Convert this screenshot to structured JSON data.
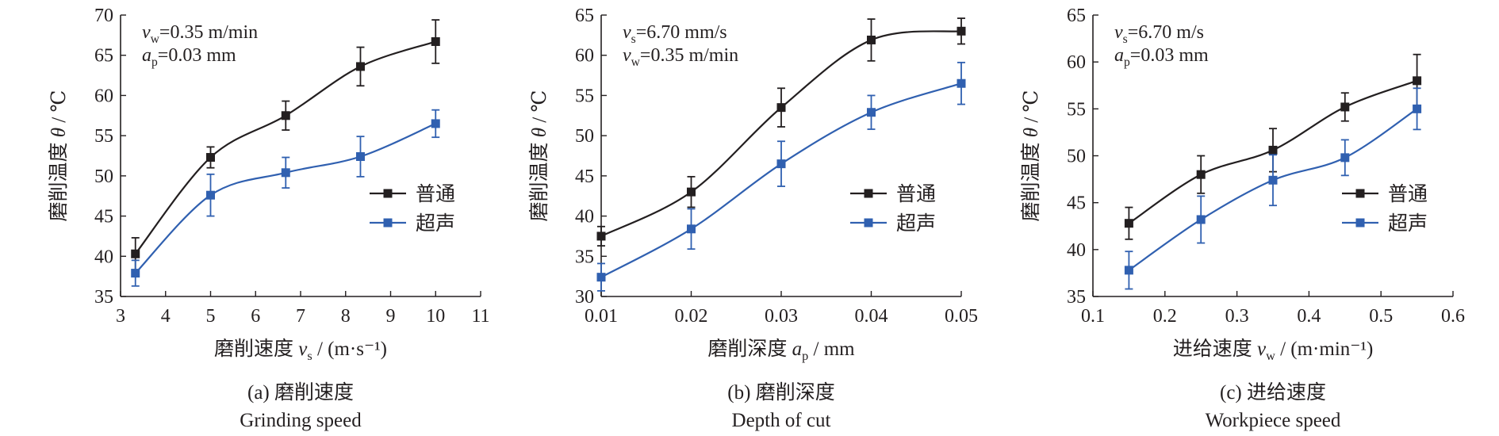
{
  "colors": {
    "normal": "#231f20",
    "ultrasonic": "#3060b0"
  },
  "legend": {
    "normal": "普通",
    "ultrasonic": "超声"
  },
  "chart_data": [
    {
      "type": "line",
      "caption": "(a) 磨削速度",
      "caption_en": "Grinding speed",
      "xlabel": "磨削速度 v_s / (m·s⁻¹)",
      "ylabel": "磨削温度 θ / ℃",
      "xlim": [
        3,
        11
      ],
      "ylim": [
        35,
        70
      ],
      "xticks": [
        3,
        4,
        5,
        6,
        7,
        8,
        9,
        10,
        11
      ],
      "yticks": [
        35,
        40,
        45,
        50,
        55,
        60,
        65,
        70
      ],
      "xtick_labels": [
        "3",
        "4",
        "5",
        "6",
        "7",
        "8",
        "9",
        "10",
        "11"
      ],
      "ytick_labels": [
        "35",
        "40",
        "45",
        "50",
        "55",
        "60",
        "65",
        "70"
      ],
      "conditions": [
        "v_w=0.35 m/min",
        "a_p=0.03 mm"
      ],
      "legend_position": "lower-right",
      "series": [
        {
          "name": "普通",
          "x": [
            3.33,
            5.0,
            6.67,
            8.33,
            10.0
          ],
          "y": [
            40.3,
            52.3,
            57.5,
            63.6,
            66.7
          ],
          "err": [
            2.0,
            1.3,
            1.8,
            2.4,
            2.7
          ]
        },
        {
          "name": "超声",
          "x": [
            3.33,
            5.0,
            6.67,
            8.33,
            10.0
          ],
          "y": [
            37.9,
            47.6,
            50.4,
            52.4,
            56.5
          ],
          "err": [
            1.6,
            2.6,
            1.9,
            2.5,
            1.7
          ]
        }
      ]
    },
    {
      "type": "line",
      "caption": "(b) 磨削深度",
      "caption_en": "Depth of cut",
      "xlabel": "磨削深度 a_p / mm",
      "ylabel": "磨削温度 θ / ℃",
      "xlim": [
        0.01,
        0.05
      ],
      "ylim": [
        30,
        65
      ],
      "xticks": [
        0.01,
        0.02,
        0.03,
        0.04,
        0.05
      ],
      "yticks": [
        30,
        35,
        40,
        45,
        50,
        55,
        60,
        65
      ],
      "xtick_labels": [
        "0.01",
        "0.02",
        "0.03",
        "0.04",
        "0.05"
      ],
      "ytick_labels": [
        "30",
        "35",
        "40",
        "45",
        "50",
        "55",
        "60",
        "65"
      ],
      "conditions": [
        "v_s=6.70 mm/s",
        "v_w=0.35 m/min"
      ],
      "legend_position": "lower-right",
      "series": [
        {
          "name": "普通",
          "x": [
            0.01,
            0.02,
            0.03,
            0.04,
            0.05
          ],
          "y": [
            37.5,
            43.0,
            53.5,
            61.9,
            63.0
          ],
          "err": [
            1.2,
            1.9,
            2.4,
            2.6,
            1.6
          ]
        },
        {
          "name": "超声",
          "x": [
            0.01,
            0.02,
            0.03,
            0.04,
            0.05
          ],
          "y": [
            32.4,
            38.4,
            46.5,
            52.9,
            56.5
          ],
          "err": [
            1.7,
            2.5,
            2.8,
            2.1,
            2.6
          ]
        }
      ]
    },
    {
      "type": "line",
      "caption": "(c) 进给速度",
      "caption_en": "Workpiece speed",
      "xlabel": "进给速度 v_w / (m·min⁻¹)",
      "ylabel": "磨削温度 θ / ℃",
      "xlim": [
        0.1,
        0.6
      ],
      "ylim": [
        35,
        65
      ],
      "xticks": [
        0.1,
        0.2,
        0.3,
        0.4,
        0.5,
        0.6
      ],
      "yticks": [
        35,
        40,
        45,
        50,
        55,
        60,
        65
      ],
      "xtick_labels": [
        "0.1",
        "0.2",
        "0.3",
        "0.4",
        "0.5",
        "0.6"
      ],
      "ytick_labels": [
        "35",
        "40",
        "45",
        "50",
        "55",
        "60",
        "65"
      ],
      "conditions": [
        "v_s=6.70 m/s",
        "a_p=0.03 mm"
      ],
      "legend_position": "lower-right",
      "series": [
        {
          "name": "普通",
          "x": [
            0.15,
            0.25,
            0.35,
            0.45,
            0.55
          ],
          "y": [
            42.8,
            48.0,
            50.6,
            55.2,
            58.0
          ],
          "err": [
            1.7,
            2.0,
            2.3,
            1.5,
            2.8
          ]
        },
        {
          "name": "超声",
          "x": [
            0.15,
            0.25,
            0.35,
            0.45,
            0.55
          ],
          "y": [
            37.8,
            43.2,
            47.4,
            49.8,
            55.0
          ],
          "err": [
            2.0,
            2.5,
            2.7,
            1.9,
            2.2
          ]
        }
      ]
    }
  ]
}
